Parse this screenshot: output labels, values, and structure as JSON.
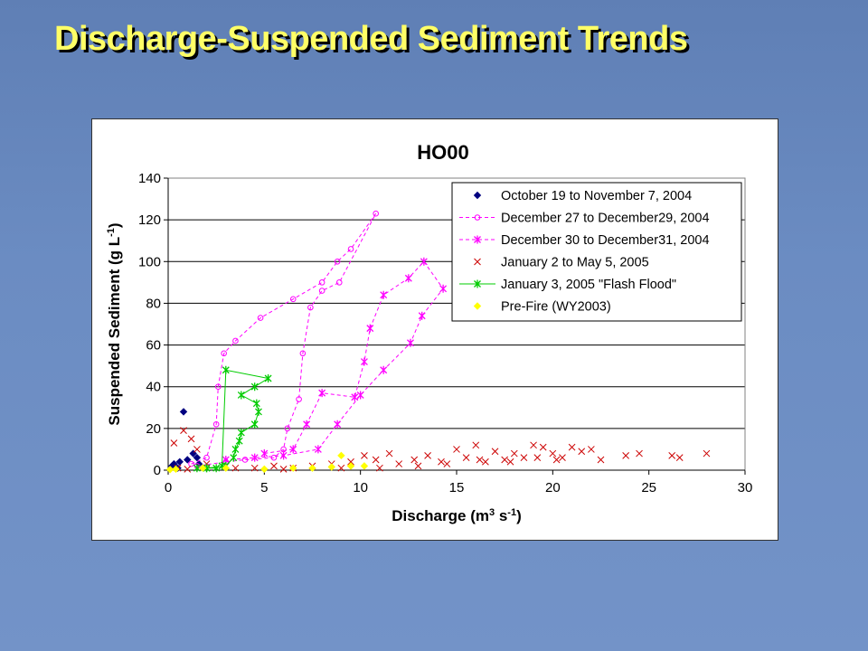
{
  "slide": {
    "title": "Discharge-Suspended Sediment Trends"
  },
  "chart_data": {
    "type": "scatter",
    "title": "HO00",
    "xlabel": "Discharge (m",
    "xlabel_sup": "3",
    "xlabel_mid": " s",
    "xlabel_sup2": "-1",
    "xlabel_end": ")",
    "ylabel": "Suspended Sediment (g L",
    "ylabel_sup": "-1",
    "ylabel_end": ")",
    "xlim": [
      0,
      30
    ],
    "ylim": [
      0,
      140
    ],
    "xticks": [
      "0",
      "5",
      "10",
      "15",
      "20",
      "25",
      "30"
    ],
    "yticks": [
      "0",
      "20",
      "40",
      "60",
      "80",
      "100",
      "120",
      "140"
    ],
    "grid": "horizontal",
    "legend_position": "top-right",
    "series": [
      {
        "name": "October 19 to November 7, 2004",
        "color": "#000080",
        "marker": "diamond",
        "line": "none",
        "points": [
          [
            0.2,
            2
          ],
          [
            0.3,
            3
          ],
          [
            0.5,
            1
          ],
          [
            0.8,
            28
          ],
          [
            1.3,
            8
          ],
          [
            1.5,
            6
          ],
          [
            1.0,
            5
          ],
          [
            0.6,
            4
          ],
          [
            1.6,
            3
          ],
          [
            0.4,
            1
          ]
        ]
      },
      {
        "name": "December 27 to December29, 2004",
        "color": "#ff00ff",
        "marker": "circle",
        "line": "dashed",
        "points": [
          [
            1.2,
            3
          ],
          [
            2.0,
            6
          ],
          [
            2.5,
            22
          ],
          [
            2.6,
            40
          ],
          [
            2.9,
            56
          ],
          [
            3.5,
            62
          ],
          [
            4.8,
            73
          ],
          [
            6.5,
            82
          ],
          [
            8.0,
            90
          ],
          [
            8.8,
            100
          ],
          [
            9.5,
            106
          ],
          [
            10.8,
            123
          ],
          [
            8.9,
            90
          ],
          [
            8.0,
            86
          ],
          [
            7.4,
            78
          ],
          [
            7.0,
            56
          ],
          [
            6.8,
            34
          ],
          [
            6.2,
            20
          ],
          [
            6.0,
            10
          ],
          [
            5.5,
            6
          ],
          [
            4.0,
            5
          ],
          [
            3.0,
            4
          ],
          [
            1.5,
            2
          ]
        ]
      },
      {
        "name": "December 30 to December31, 2004",
        "color": "#ff00ff",
        "marker": "star",
        "line": "dashed",
        "points": [
          [
            5.0,
            8
          ],
          [
            6.5,
            10
          ],
          [
            7.2,
            22
          ],
          [
            8.0,
            37
          ],
          [
            9.7,
            35
          ],
          [
            10.2,
            52
          ],
          [
            10.5,
            68
          ],
          [
            11.2,
            84
          ],
          [
            12.5,
            92
          ],
          [
            13.3,
            100
          ],
          [
            14.3,
            87
          ],
          [
            13.2,
            74
          ],
          [
            12.6,
            61
          ],
          [
            11.2,
            48
          ],
          [
            10.0,
            36
          ],
          [
            8.8,
            22
          ],
          [
            7.8,
            10
          ],
          [
            6.0,
            7
          ],
          [
            4.5,
            6
          ],
          [
            3.0,
            5
          ]
        ]
      },
      {
        "name": "January 2 to May 5, 2005",
        "color": "#cc0000",
        "marker": "x",
        "line": "none",
        "points": [
          [
            0.3,
            13
          ],
          [
            0.8,
            19
          ],
          [
            1.2,
            15
          ],
          [
            1.5,
            10
          ],
          [
            2.0,
            3
          ],
          [
            3.0,
            2
          ],
          [
            4.5,
            1
          ],
          [
            5.5,
            2
          ],
          [
            6.5,
            1
          ],
          [
            7.5,
            2
          ],
          [
            8.5,
            3
          ],
          [
            9.5,
            4
          ],
          [
            10.2,
            7
          ],
          [
            10.8,
            5
          ],
          [
            11.5,
            8
          ],
          [
            12.0,
            3
          ],
          [
            12.8,
            5
          ],
          [
            13.5,
            7
          ],
          [
            14.2,
            4
          ],
          [
            15.0,
            10
          ],
          [
            15.5,
            6
          ],
          [
            16.0,
            12
          ],
          [
            16.5,
            4
          ],
          [
            17.0,
            9
          ],
          [
            17.5,
            5
          ],
          [
            18.0,
            8
          ],
          [
            18.5,
            6
          ],
          [
            19.0,
            12
          ],
          [
            19.5,
            11
          ],
          [
            20.0,
            8
          ],
          [
            20.5,
            6
          ],
          [
            21.0,
            11
          ],
          [
            21.5,
            9
          ],
          [
            22.0,
            10
          ],
          [
            22.5,
            5
          ],
          [
            23.8,
            7
          ],
          [
            24.5,
            8
          ],
          [
            26.2,
            7
          ],
          [
            26.6,
            6
          ],
          [
            28.0,
            8
          ],
          [
            13.0,
            2
          ],
          [
            14.5,
            3
          ],
          [
            16.2,
            5
          ],
          [
            17.8,
            4
          ],
          [
            19.2,
            6
          ],
          [
            20.2,
            5
          ],
          [
            11.0,
            1
          ],
          [
            9.0,
            1
          ],
          [
            6.0,
            0.5
          ],
          [
            3.5,
            1
          ],
          [
            1.0,
            0.5
          ],
          [
            0.5,
            1
          ]
        ]
      },
      {
        "name": "January 3, 2005 \"Flash Flood\"",
        "color": "#00cc00",
        "marker": "star",
        "line": "solid",
        "points": [
          [
            1.5,
            1
          ],
          [
            2.0,
            1
          ],
          [
            2.5,
            1
          ],
          [
            2.8,
            2
          ],
          [
            3.0,
            48
          ],
          [
            5.2,
            44
          ],
          [
            4.5,
            40
          ],
          [
            3.8,
            36
          ],
          [
            4.6,
            32
          ],
          [
            4.7,
            28
          ],
          [
            4.5,
            22
          ],
          [
            3.8,
            18
          ],
          [
            3.7,
            14
          ],
          [
            3.5,
            10
          ],
          [
            3.4,
            6
          ],
          [
            3.0,
            2
          ],
          [
            2.0,
            1
          ]
        ]
      },
      {
        "name": "Pre-Fire (WY2003)",
        "color": "#ffff00",
        "marker": "diamond",
        "line": "none",
        "points": [
          [
            0.1,
            0.3
          ],
          [
            0.4,
            0.5
          ],
          [
            1.8,
            1
          ],
          [
            3.0,
            1
          ],
          [
            5.0,
            0.5
          ],
          [
            6.5,
            1
          ],
          [
            7.5,
            1
          ],
          [
            8.5,
            1.5
          ],
          [
            9.0,
            7
          ],
          [
            9.5,
            2
          ],
          [
            10.2,
            2
          ]
        ]
      }
    ]
  }
}
